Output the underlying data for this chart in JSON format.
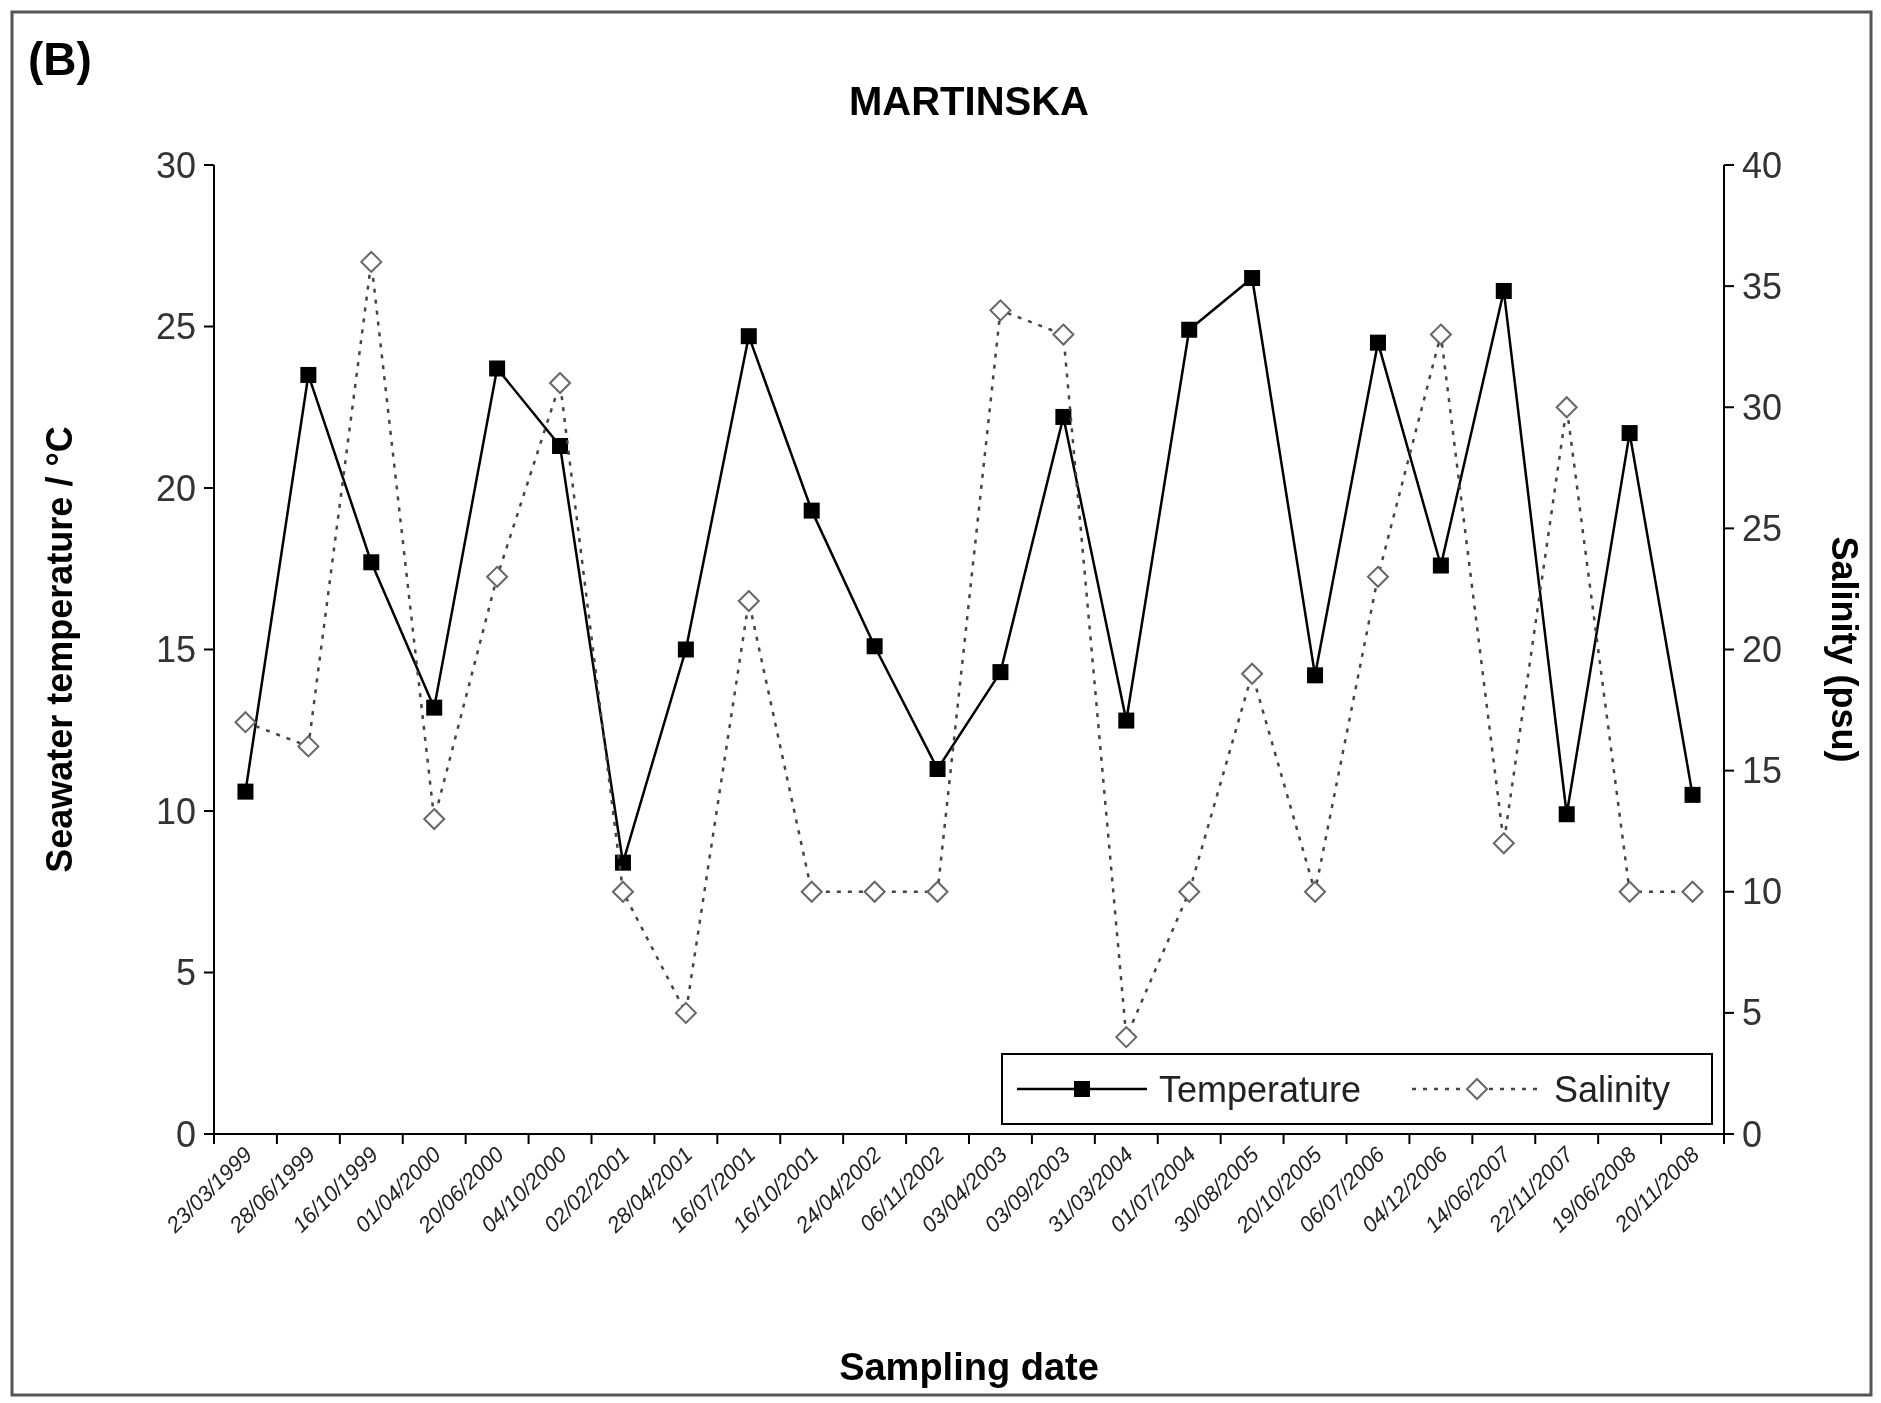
{
  "chart_data": {
    "type": "line",
    "title": "MARTINSKA",
    "annotations": [
      "(B)"
    ],
    "xlabel": "Sampling date",
    "ylabel": "Seawater temperature /  °C",
    "y2label": "Salinity (psu)",
    "categories": [
      "23/03/1999",
      "28/06/1999",
      "16/10/1999",
      "01/04/2000",
      "20/06/2000",
      "04/10/2000",
      "02/02/2001",
      "28/04/2001",
      "16/07/2001",
      "16/10/2001",
      "24/04/2002",
      "06/11/2002",
      "03/04/2003",
      "03/09/2003",
      "31/03/2004",
      "01/07/2004",
      "30/08/2005",
      "20/10/2005",
      "06/07/2006",
      "04/12/2006",
      "14/06/2007",
      "22/11/2007",
      "19/06/2008",
      "20/11/2008"
    ],
    "series": [
      {
        "name": "Temperature",
        "color": "#000000",
        "marker": "square",
        "line_style": "solid",
        "values": [
          10.6,
          23.5,
          17.7,
          13.2,
          23.7,
          21.3,
          8.4,
          15.0,
          24.7,
          19.3,
          15.1,
          11.3,
          14.3,
          22.2,
          12.8,
          24.9,
          26.5,
          14.2,
          24.5,
          17.6,
          26.1,
          9.9,
          21.7,
          10.5
        ]
      },
      {
        "name": "Salinity",
        "color": "#444444",
        "marker": "diamond",
        "line_style": "dotted",
        "axis": "y2",
        "values": [
          17,
          16,
          36,
          13,
          23,
          31,
          10,
          5,
          22,
          10,
          10,
          10,
          34,
          33,
          4,
          10,
          19,
          10,
          23,
          33,
          12,
          30,
          10,
          10
        ]
      }
    ],
    "ylim": [
      0,
      30
    ],
    "yticks": [
      0,
      5,
      10,
      15,
      20,
      25,
      30
    ],
    "y2lim": [
      0,
      40
    ],
    "y2ticks": [
      0,
      5,
      10,
      15,
      20,
      25,
      30,
      35,
      40
    ],
    "grid": false,
    "legend": "bottom right"
  }
}
